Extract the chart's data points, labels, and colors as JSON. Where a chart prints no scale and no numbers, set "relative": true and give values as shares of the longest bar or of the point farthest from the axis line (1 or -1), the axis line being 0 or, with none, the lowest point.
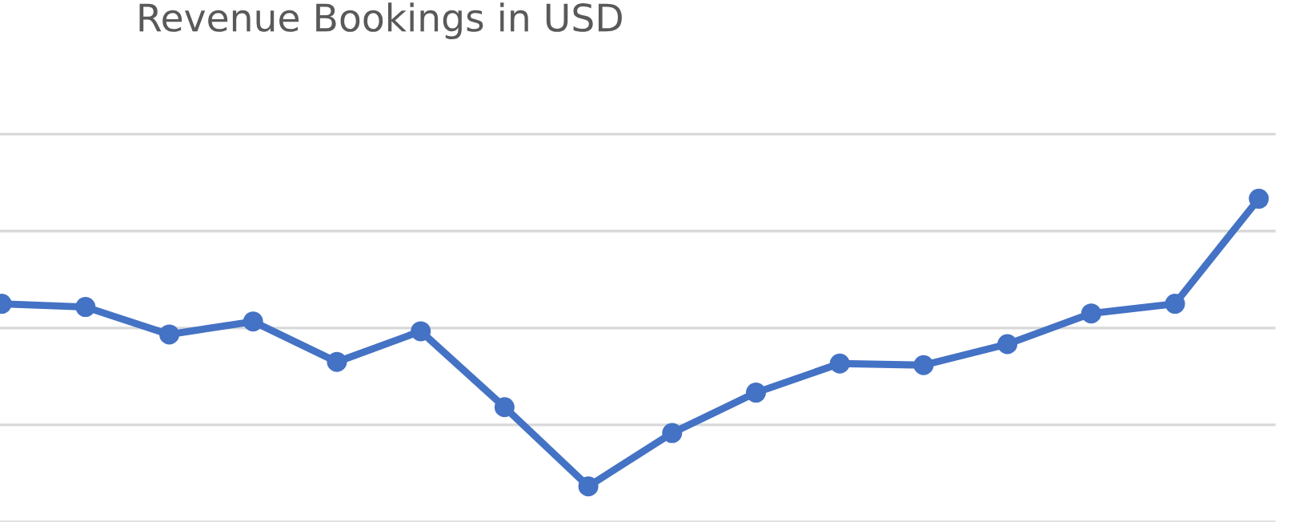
{
  "chart_data": {
    "type": "line",
    "title": "Revenue Bookings in USD",
    "relative": true,
    "categories": [
      null,
      null,
      null,
      null,
      null,
      null,
      null,
      null,
      null,
      null,
      null,
      null,
      null,
      null,
      null,
      null
    ],
    "series": [
      {
        "color": "#4472c4",
        "values": [
          0.675,
          0.665,
          0.58,
          0.62,
          0.495,
          0.59,
          0.355,
          0.11,
          0.275,
          0.4,
          0.49,
          0.485,
          0.55,
          0.645,
          0.675,
          1
        ]
      }
    ],
    "marker": "circle",
    "line_style": "solid",
    "grid": "y"
  }
}
